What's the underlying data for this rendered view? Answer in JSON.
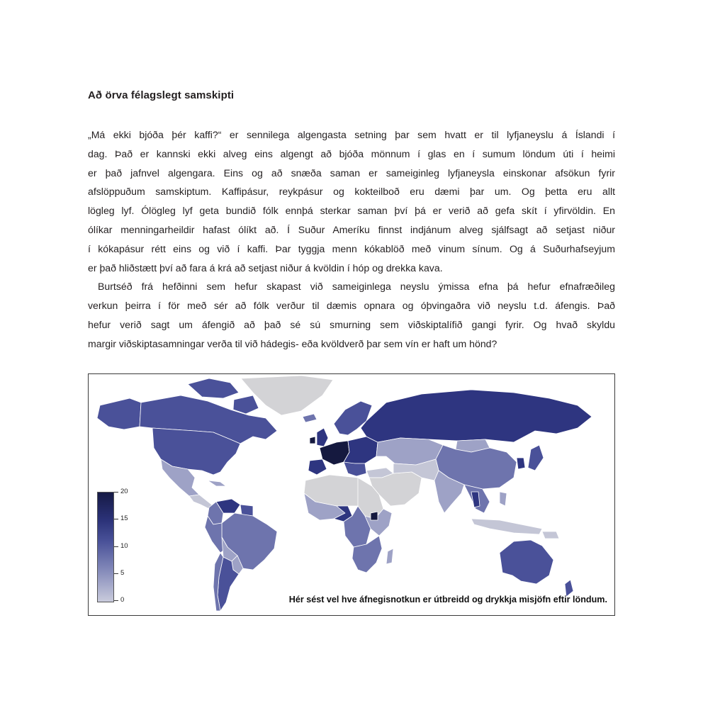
{
  "heading": "Að örva félagslegt samskipti",
  "paragraph_lines": [
    "„Má ekki bjóða þér kaffi?“ er sennilega algengasta setning þar sem hvatt er til lyfjaneyslu á Íslandi í",
    "dag. Það er kannski ekki alveg eins algengt að bjóða mönnum í glas en í sumum löndum úti í heimi",
    "er það jafnvel algengara. Eins og að snæða saman er sameiginleg lyfjaneysla einskonar afsökun fyrir",
    "afslöppuðum samskiptum. Kaffipásur, reykpásur og kokteilboð eru dæmi þar um. Og þetta eru allt",
    "lögleg lyf. Ólögleg lyf geta bundið fólk ennþá sterkar saman því þá er verið að gefa skít í yfirvöldin. En",
    "ólíkar menningarheildir hafast ólíkt að. Í Suður Ameríku finnst indjánum alveg sjálfsagt að setjast niður",
    "í kókapásur rétt eins og við í kaffi. Þar tyggja menn kókablöð með vinum sínum. Og á Suðurhafseyjum",
    "er það hliðstætt því að fara á krá að setjast niður á kvöldin í hóp og drekka kava.",
    "Burtséð frá hefðinni sem hefur skapast við sameiginlega neyslu ýmissa efna þá hefur efnafræðileg",
    "verkun þeirra í för með sér að fólk verður til dæmis opnara og óþvingaðra við neyslu t.d. áfengis. Það",
    "hefur verið sagt um áfengið að það sé sú smurning sem viðskiptalífið gangi fyrir. Og hvað skyldu",
    "margir viðskiptasamningar verða til við hádegis- eða kvöldverð þar sem vín er haft um hönd?"
  ],
  "figure": {
    "caption": "Hér sést vel hve áfnegisnotkun er útbreidd og drykkja misjöfn eftir löndum.",
    "legend_ticks": [
      "20",
      "15",
      "10",
      "5",
      "0"
    ],
    "legend_values": [
      20,
      15,
      10,
      5,
      0
    ],
    "colors": {
      "no_data": "#d3d3d6",
      "very_low": "#c4c6d6",
      "low": "#9ea2c6",
      "mid": "#6e74ad",
      "high": "#4a5199",
      "very_high": "#2e3580",
      "max": "#15193f",
      "border": "#ffffff"
    }
  }
}
